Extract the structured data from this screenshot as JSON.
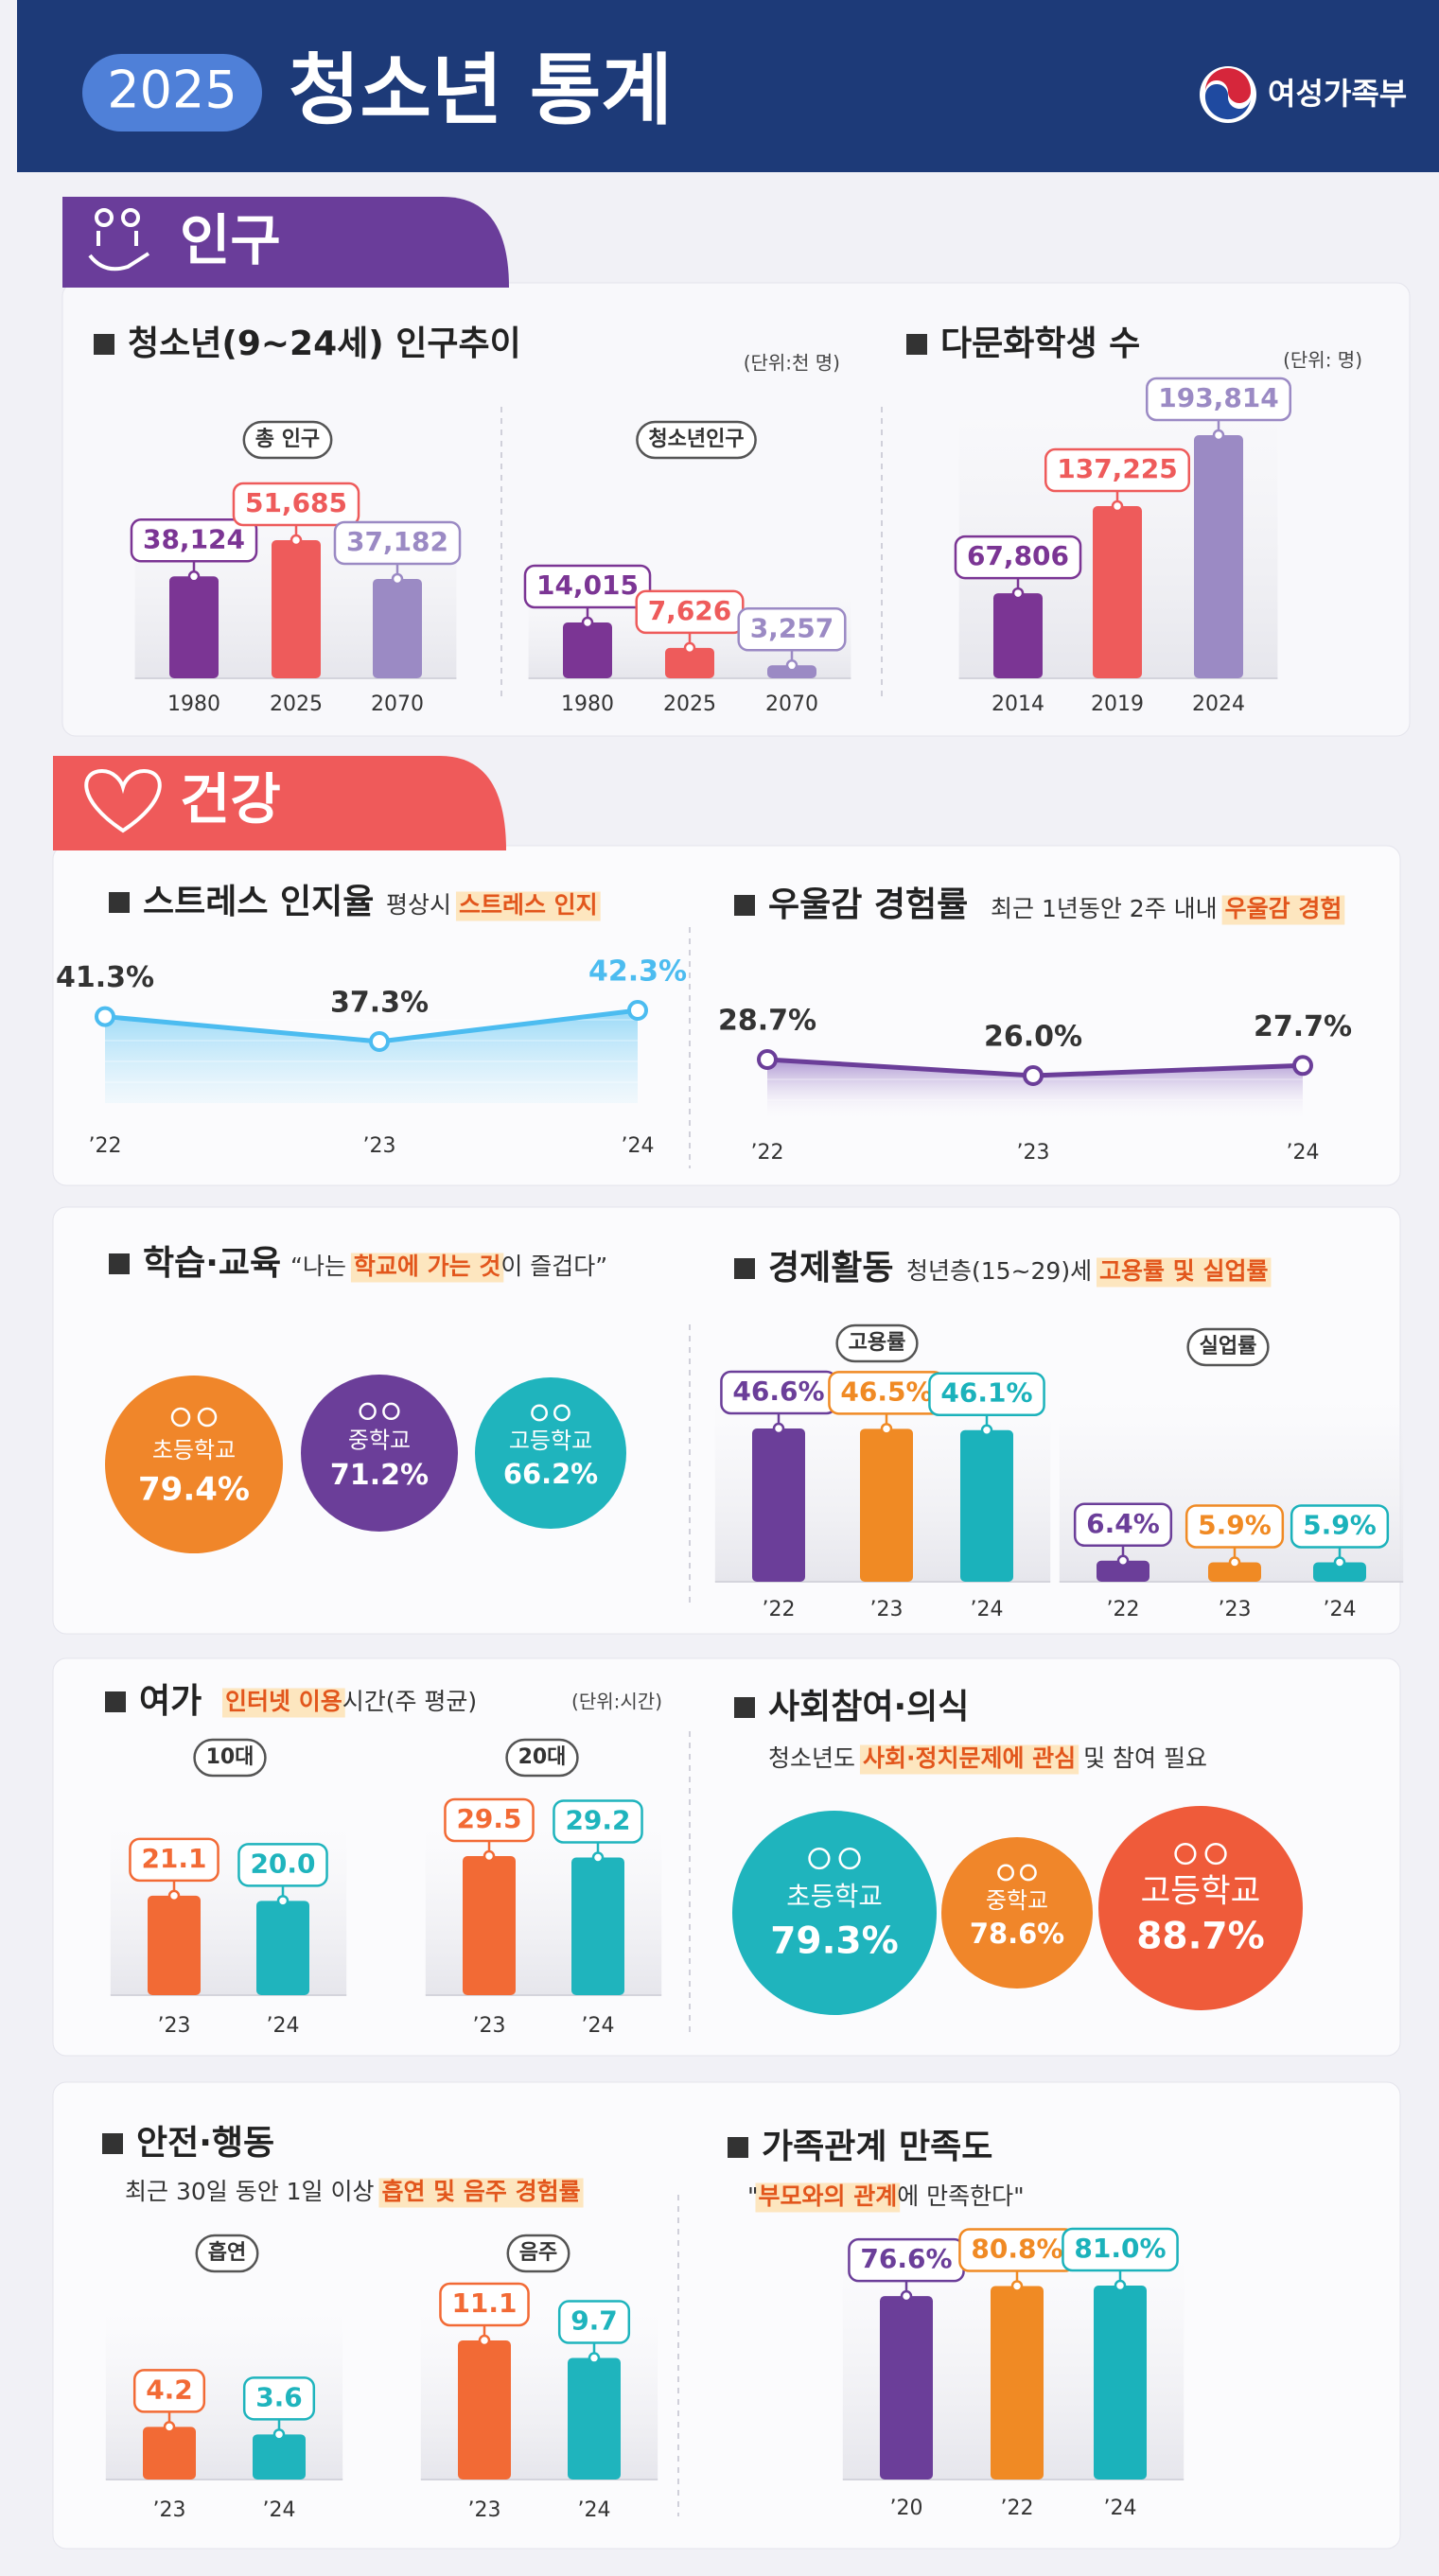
{
  "header": {
    "year": "2025",
    "title": "청소년 통계",
    "ministry": "여성가족부"
  },
  "sections": [
    "인구",
    "건강"
  ],
  "population": {
    "title": "청소년(9~24세) 인구추이",
    "unit": "(단위:천 명)",
    "categories": [
      "1980",
      "2025",
      "2070"
    ],
    "colors": [
      "#7b3594",
      "#ee5b5b",
      "#9b8ac4"
    ],
    "groups": [
      {
        "label": "총 인구",
        "values": [
          38124,
          51685,
          37182
        ],
        "value_labels": [
          "38,124",
          "51,685",
          "37,182"
        ]
      },
      {
        "label": "청소년인구",
        "values": [
          14015,
          7626,
          3257
        ],
        "value_labels": [
          "14,015",
          "7,626",
          "3,257"
        ]
      }
    ]
  },
  "multicultural": {
    "title": "다문화학생 수",
    "unit": "(단위: 명)",
    "categories": [
      "2014",
      "2019",
      "2024"
    ],
    "colors": [
      "#7b3594",
      "#ee5b5b",
      "#9b8ac4"
    ],
    "groups": [
      {
        "values": [
          67806,
          137225,
          193814
        ],
        "value_labels": [
          "67,806",
          "137,225",
          "193,814"
        ]
      }
    ]
  },
  "stress": {
    "title": "스트레스 인지율",
    "subtitle": [
      "평상시 ",
      "스트레스 인지"
    ],
    "categories": [
      "’22",
      "’23",
      "’24"
    ],
    "values": [
      41.3,
      37.3,
      42.3
    ],
    "value_labels": [
      "41.3%",
      "37.3%",
      "42.3%"
    ],
    "color": "#4cbcf0"
  },
  "depression": {
    "title": "우울감 경험률",
    "subtitle": [
      "최근 1년동안 2주 내내 ",
      "우울감 경험"
    ],
    "categories": [
      "’22",
      "’23",
      "’24"
    ],
    "values": [
      28.7,
      26.0,
      27.7
    ],
    "value_labels": [
      "28.7%",
      "26.0%",
      "27.7%"
    ],
    "color": "#6b3e99"
  },
  "study": {
    "title": "학습·교육",
    "subtitle": [
      "“나는 ",
      "학교에 가는 것",
      "이 즐겁다”"
    ],
    "categories": [
      "초등학교",
      "중학교",
      "고등학교"
    ],
    "values": [
      79.4,
      71.2,
      66.2
    ],
    "value_labels": [
      "79.4%",
      "71.2%",
      "66.2%"
    ],
    "colors": [
      "#f0862a",
      "#6b3e99",
      "#1fb4bd"
    ]
  },
  "economy": {
    "title": "경제활동",
    "subtitle": [
      "청년층(15~29)세 ",
      "고용률 및 실업률"
    ],
    "categories": [
      "’22",
      "’23",
      "’24"
    ],
    "colors": [
      "#6b3e99",
      "#f08a24",
      "#1bb2bb"
    ],
    "groups": [
      {
        "label": "고용률",
        "values": [
          46.6,
          46.5,
          46.1
        ],
        "value_labels": [
          "46.6%",
          "46.5%",
          "46.1%"
        ]
      },
      {
        "label": "실업률",
        "values": [
          6.4,
          5.9,
          5.9
        ],
        "value_labels": [
          "6.4%",
          "5.9%",
          "5.9%"
        ]
      }
    ]
  },
  "leisure": {
    "title": "여가",
    "subtitle": [
      "인터넷 이용",
      "시간(주 평균)"
    ],
    "unit": "(단위:시간)",
    "categories": [
      "’23",
      "’24"
    ],
    "colors": [
      "#f26a35",
      "#1fb4bd"
    ],
    "groups": [
      {
        "label": "10대",
        "values": [
          21.1,
          20.0
        ],
        "value_labels": [
          "21.1",
          "20.0"
        ]
      },
      {
        "label": "20대",
        "values": [
          29.5,
          29.2
        ]
      }
    ]
  },
  "social": {
    "title": "사회참여·의식",
    "subtitle": [
      "청소년도 ",
      "사회·정치문제에 관심",
      " 및 참여 필요"
    ],
    "categories": [
      "초등학교",
      "중학교",
      "고등학교"
    ],
    "values": [
      79.3,
      78.6,
      88.7
    ],
    "value_labels": [
      "79.3%",
      "78.6%",
      "88.7%"
    ],
    "colors": [
      "#1fb4bd",
      "#f0862a",
      "#ef5b3a"
    ]
  },
  "safety": {
    "title": "안전·행동",
    "subtitle": [
      "최근 30일 동안 1일 이상 ",
      "흡연 및 음주 경험률"
    ],
    "categories": [
      "’23",
      "’24"
    ],
    "colors": [
      "#f26a35",
      "#1fb4bd"
    ],
    "groups": [
      {
        "label": "흡연",
        "values": [
          4.2,
          3.6
        ]
      },
      {
        "label": "음주",
        "values": [
          11.1,
          9.7
        ]
      }
    ]
  },
  "family": {
    "title": "가족관계 만족도",
    "subtitle": [
      "\"",
      "부모와의 관계",
      "에 만족한다\""
    ],
    "categories": [
      "’20",
      "’22",
      "’24"
    ],
    "colors": [
      "#6b3e99",
      "#f08a24",
      "#1bb2bb"
    ],
    "groups": [
      {
        "values": [
          76.6,
          80.8,
          81.0
        ],
        "value_labels": [
          "76.6%",
          "80.8%",
          "81.0%"
        ]
      }
    ]
  }
}
